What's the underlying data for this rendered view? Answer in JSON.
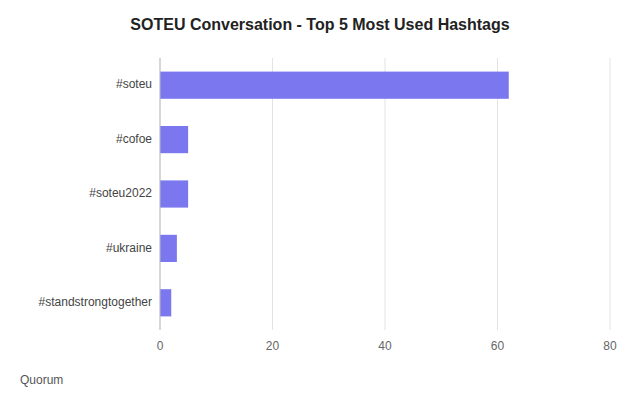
{
  "chart_data": {
    "type": "bar",
    "orientation": "horizontal",
    "title": "SOTEU Conversation - Top 5 Most Used Hashtags",
    "categories": [
      "#soteu",
      "#cofoe",
      "#soteu2022",
      "#ukraine",
      "#standstrongtogether"
    ],
    "values": [
      62,
      5,
      5,
      3,
      2
    ],
    "color": "#7B77EE",
    "xlim": [
      0,
      80
    ],
    "xticks": [
      0,
      20,
      40,
      60,
      80
    ],
    "grid": true,
    "annotations": [
      "Quorum"
    ]
  }
}
